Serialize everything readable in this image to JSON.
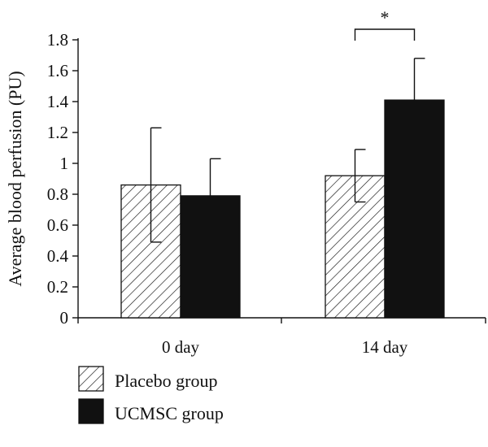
{
  "chart_data": {
    "type": "bar",
    "categories": [
      "0 day",
      "14 day"
    ],
    "series": [
      {
        "name": "Placebo group",
        "values": [
          0.86,
          0.92
        ],
        "error_upper": [
          1.23,
          1.09
        ],
        "error_lower": [
          0.49,
          0.75
        ],
        "fill": "hatch",
        "color": "#111111"
      },
      {
        "name": "UCMSC group",
        "values": [
          0.79,
          1.41
        ],
        "error_upper": [
          1.03,
          1.68
        ],
        "error_lower": [
          null,
          null
        ],
        "fill": "solid",
        "color": "#111111"
      }
    ],
    "title": "",
    "xlabel": "",
    "ylabel": "Average blood perfusion (PU)",
    "ylim": [
      0,
      1.8
    ],
    "yticks": [
      0,
      0.2,
      0.4,
      0.6,
      0.8,
      1,
      1.2,
      1.4,
      1.6,
      1.8
    ],
    "ytick_labels": [
      "0",
      "0.2",
      "0.4",
      "0.6",
      "0.8",
      "1",
      "1.2",
      "1.4",
      "1.6",
      "1.8"
    ],
    "grid": false,
    "legend_position": "bottom-left",
    "annotations": [
      {
        "text": "*",
        "category": "14 day",
        "type": "significance-bracket"
      }
    ]
  }
}
